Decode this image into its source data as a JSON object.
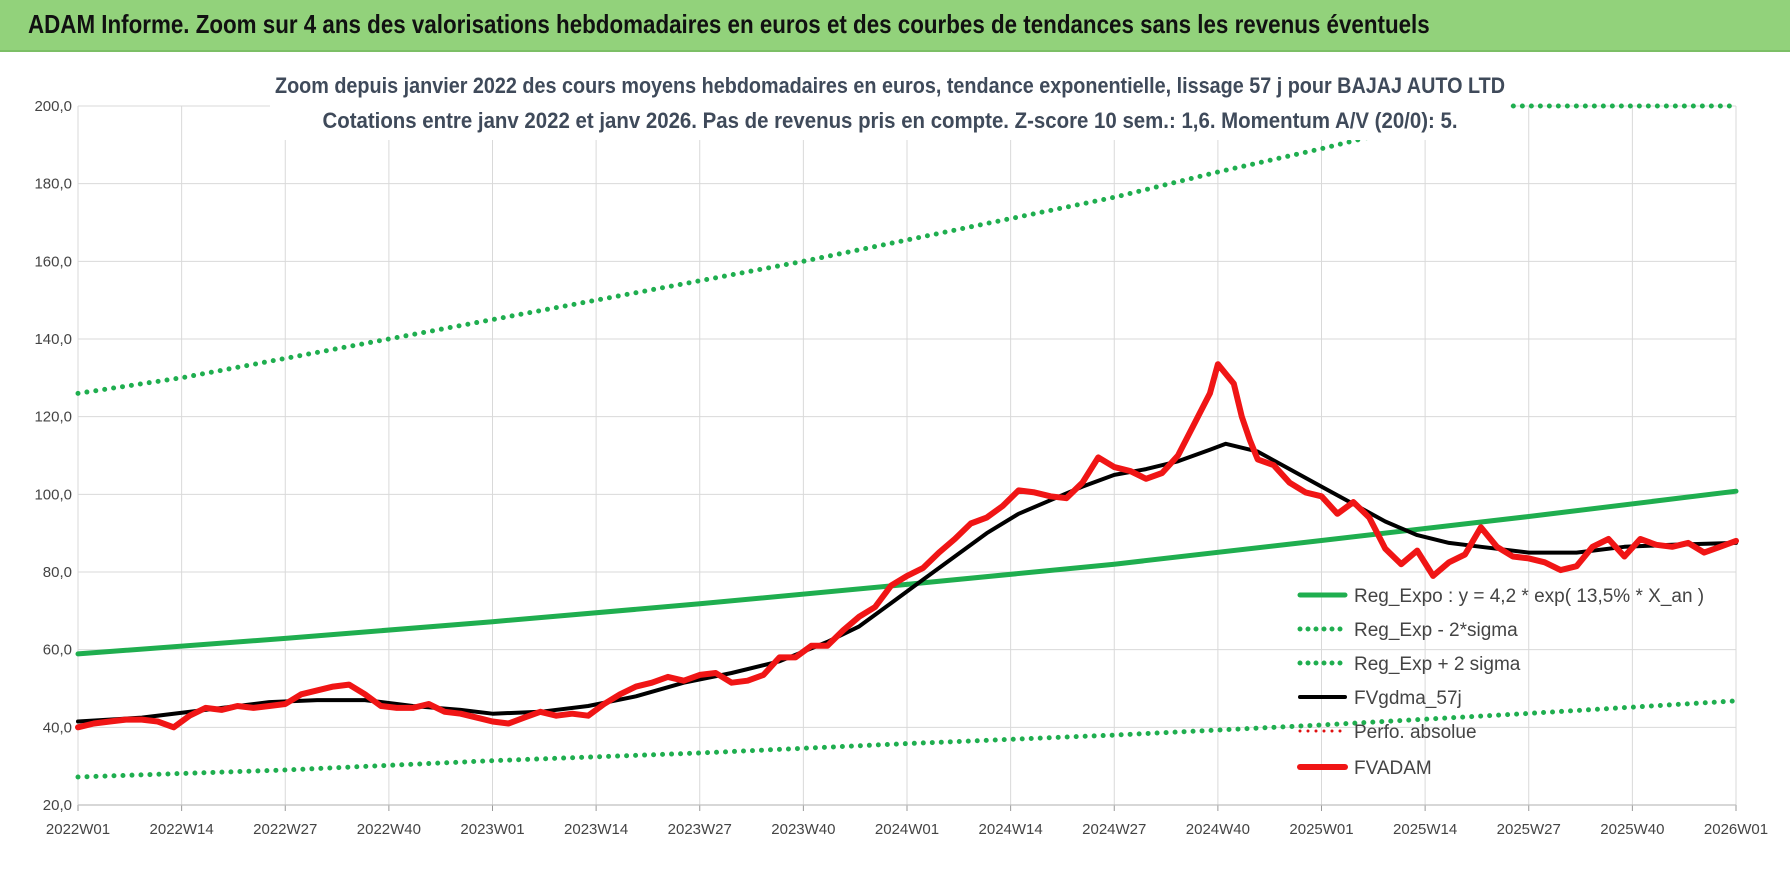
{
  "header": {
    "title": "ADAM Informe. Zoom sur 4 ans des valorisations hebdomadaires en euros et des courbes de tendances sans les revenus éventuels"
  },
  "chart_data": {
    "type": "line",
    "title_lines": [
      "Zoom depuis janvier 2022 des cours moyens hebdomadaires en euros, tendance exponentielle, lissage 57 j pour BAJAJ AUTO LTD",
      "Cotations entre janv 2022 et janv 2026. Pas de revenus pris en compte. Z-score 10 sem.: 1,6. Momentum A/V (20/0): 5."
    ],
    "ylim": [
      20,
      200
    ],
    "yticks": [
      "20,0",
      "40,0",
      "60,0",
      "80,0",
      "100,0",
      "120,0",
      "140,0",
      "160,0",
      "180,0",
      "200,0"
    ],
    "ytick_values": [
      20,
      40,
      60,
      80,
      100,
      120,
      140,
      160,
      180,
      200
    ],
    "xlim": [
      0,
      208
    ],
    "xticks": [
      "2022W01",
      "2022W14",
      "2022W27",
      "2022W40",
      "2023W01",
      "2023W14",
      "2023W27",
      "2023W40",
      "2024W01",
      "2024W14",
      "2024W27",
      "2024W40",
      "2025W01",
      "2025W14",
      "2025W27",
      "2025W40",
      "2026W01"
    ],
    "xtick_values": [
      0,
      13,
      26,
      39,
      52,
      65,
      78,
      91,
      104,
      117,
      130,
      143,
      156,
      169,
      182,
      195,
      208
    ],
    "grid": true,
    "legend_position": "bottom-right",
    "series": [
      {
        "name": "Reg_Expo : y = 4,2 * exp( 13,5% *  X_an )",
        "color": "#1fae4f",
        "style": "solid",
        "x": [
          0,
          26,
          52,
          78,
          104,
          130,
          156,
          182,
          208
        ],
        "values": [
          58.9,
          62.9,
          67.2,
          71.8,
          76.8,
          82.0,
          88.1,
          94.3,
          100.8
        ]
      },
      {
        "name": "Reg_Exp - 2*sigma",
        "color": "#1fae4f",
        "style": "dotted",
        "x": [
          0,
          26,
          52,
          78,
          104,
          130,
          156,
          182,
          208
        ],
        "values": [
          27.2,
          29.0,
          31.4,
          33.4,
          35.8,
          38.0,
          40.6,
          43.6,
          46.8
        ]
      },
      {
        "name": "Reg_Exp + 2 sigma",
        "color": "#1fae4f",
        "style": "dotted",
        "x": [
          0,
          13,
          26,
          39,
          52,
          65,
          78,
          91,
          104,
          117,
          130,
          143,
          156,
          162,
          163,
          208
        ],
        "values": [
          126,
          130,
          135,
          140,
          145,
          150,
          155,
          160,
          165.5,
          171,
          176.5,
          183,
          189,
          192,
          200,
          200
        ]
      },
      {
        "name": "FVgdma_57j",
        "color": "#000000",
        "style": "solid",
        "x": [
          0,
          8,
          16,
          24,
          30,
          36,
          42,
          48,
          52,
          58,
          64,
          70,
          76,
          82,
          88,
          94,
          98,
          102,
          106,
          110,
          114,
          118,
          122,
          126,
          130,
          134,
          138,
          142,
          144,
          148,
          152,
          156,
          160,
          164,
          168,
          172,
          176,
          182,
          188,
          194,
          200,
          208
        ],
        "values": [
          41.5,
          42.5,
          44.5,
          46.5,
          47,
          47,
          45.5,
          44.5,
          43.5,
          44,
          45.5,
          48,
          51.5,
          54,
          57,
          62,
          66,
          72,
          78,
          84,
          90,
          95,
          98.5,
          102,
          105,
          106.5,
          108.5,
          111.5,
          113,
          111,
          106.5,
          102,
          97.5,
          93,
          89.5,
          87.5,
          86.5,
          85,
          85,
          86.5,
          87,
          87.5
        ]
      },
      {
        "name": "Perfo. absolue",
        "color": "#e01010",
        "style": "dotted",
        "x": [],
        "values": []
      },
      {
        "name": "FVADAM",
        "color": "#f01515",
        "style": "solid",
        "x": [
          0,
          2,
          4,
          6,
          8,
          10,
          12,
          14,
          16,
          18,
          20,
          22,
          24,
          26,
          28,
          30,
          32,
          34,
          36,
          38,
          40,
          42,
          44,
          46,
          48,
          50,
          52,
          54,
          56,
          58,
          60,
          62,
          64,
          66,
          68,
          70,
          72,
          74,
          76,
          78,
          80,
          82,
          84,
          86,
          88,
          90,
          92,
          94,
          96,
          98,
          100,
          102,
          104,
          106,
          108,
          110,
          112,
          114,
          116,
          118,
          120,
          122,
          124,
          126,
          128,
          130,
          132,
          134,
          136,
          138,
          140,
          142,
          143,
          144,
          145,
          146,
          147,
          148,
          150,
          152,
          154,
          156,
          158,
          160,
          162,
          164,
          166,
          168,
          170,
          172,
          174,
          176,
          178,
          180,
          182,
          184,
          186,
          188,
          190,
          192,
          194,
          196,
          198,
          200,
          202,
          204,
          206,
          208
        ],
        "values": [
          40,
          41,
          41.5,
          42,
          42,
          41.5,
          40,
          43,
          45,
          44.5,
          45.5,
          45,
          45.5,
          46,
          48.5,
          49.5,
          50.5,
          51,
          48.5,
          45.5,
          45,
          45,
          46,
          44,
          43.5,
          42.5,
          41.5,
          41,
          42.5,
          44,
          43,
          43.5,
          43,
          46,
          48.5,
          50.5,
          51.5,
          53,
          52,
          53.5,
          54,
          51.5,
          52,
          53.5,
          58,
          58,
          61,
          61,
          65,
          68.5,
          71,
          76.5,
          79,
          81,
          85,
          88.5,
          92.5,
          94,
          97,
          101,
          100.5,
          99.5,
          99,
          103,
          109.5,
          107,
          106,
          104,
          105.5,
          110,
          118,
          126,
          133.5,
          131,
          128.5,
          120,
          114,
          109,
          107.5,
          103,
          100.5,
          99.5,
          95,
          98,
          94,
          86,
          82,
          85.5,
          79,
          82.5,
          84.5,
          91.5,
          86.5,
          84,
          83.5,
          82.5,
          80.5,
          81.5,
          86.5,
          88.5,
          84,
          88.5,
          87,
          86.5,
          87.5,
          85,
          86.5,
          88
        ]
      }
    ]
  }
}
